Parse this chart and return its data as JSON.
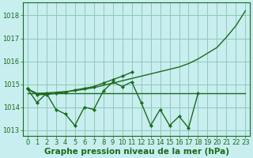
{
  "x": [
    0,
    1,
    2,
    3,
    4,
    5,
    6,
    7,
    8,
    9,
    10,
    11,
    12,
    13,
    14,
    15,
    16,
    17,
    18,
    19,
    20,
    21,
    22,
    23
  ],
  "y1_zigzag": [
    1014.8,
    1014.2,
    1014.6,
    1013.9,
    1013.7,
    1013.2,
    1014.0,
    1013.9,
    1014.7,
    1015.1,
    1014.9,
    1015.1,
    1014.2,
    1013.2,
    1013.9,
    1013.2,
    1013.6,
    1013.1,
    1014.6,
    null,
    null,
    null,
    null,
    null
  ],
  "y2_smooth": [
    1014.8,
    1014.6,
    1014.62,
    1014.65,
    1014.68,
    1014.72,
    1014.78,
    1014.85,
    1014.95,
    1015.05,
    1015.15,
    1015.25,
    1015.35,
    1015.45,
    1015.55,
    1015.65,
    1015.75,
    1015.9,
    1016.1,
    1016.35,
    1016.6,
    1017.05,
    1017.55,
    1018.2
  ],
  "y3_partial_x": [
    0,
    1,
    2,
    3,
    4,
    5,
    6,
    7,
    8,
    9,
    10,
    11
  ],
  "y3_partial_y": [
    1014.8,
    1014.55,
    1014.55,
    1014.6,
    1014.65,
    1014.75,
    1014.82,
    1014.9,
    1015.05,
    1015.2,
    1015.35,
    1015.52
  ],
  "y4_flat": [
    1014.6,
    1014.6,
    1014.6,
    1014.6,
    1014.6,
    1014.6,
    1014.6,
    1014.6,
    1014.6,
    1014.6,
    1014.6,
    1014.6,
    1014.6,
    1014.6,
    1014.6,
    1014.6,
    1014.6,
    1014.6,
    1014.6,
    1014.6,
    1014.6,
    1014.6,
    1014.6,
    1014.6
  ],
  "xlim": [
    -0.5,
    23.5
  ],
  "ylim": [
    1012.75,
    1018.55
  ],
  "yticks": [
    1013,
    1014,
    1015,
    1016,
    1017,
    1018
  ],
  "xticks": [
    0,
    1,
    2,
    3,
    4,
    5,
    6,
    7,
    8,
    9,
    10,
    11,
    12,
    13,
    14,
    15,
    16,
    17,
    18,
    19,
    20,
    21,
    22,
    23
  ],
  "xlabel": "Graphe pression niveau de la mer (hPa)",
  "background_color": "#c8eef0",
  "grid_color": "#90c8b8",
  "line_color": "#1a6b1a",
  "text_color": "#1a6b1a",
  "label_fontsize": 7.5,
  "tick_fontsize": 6
}
